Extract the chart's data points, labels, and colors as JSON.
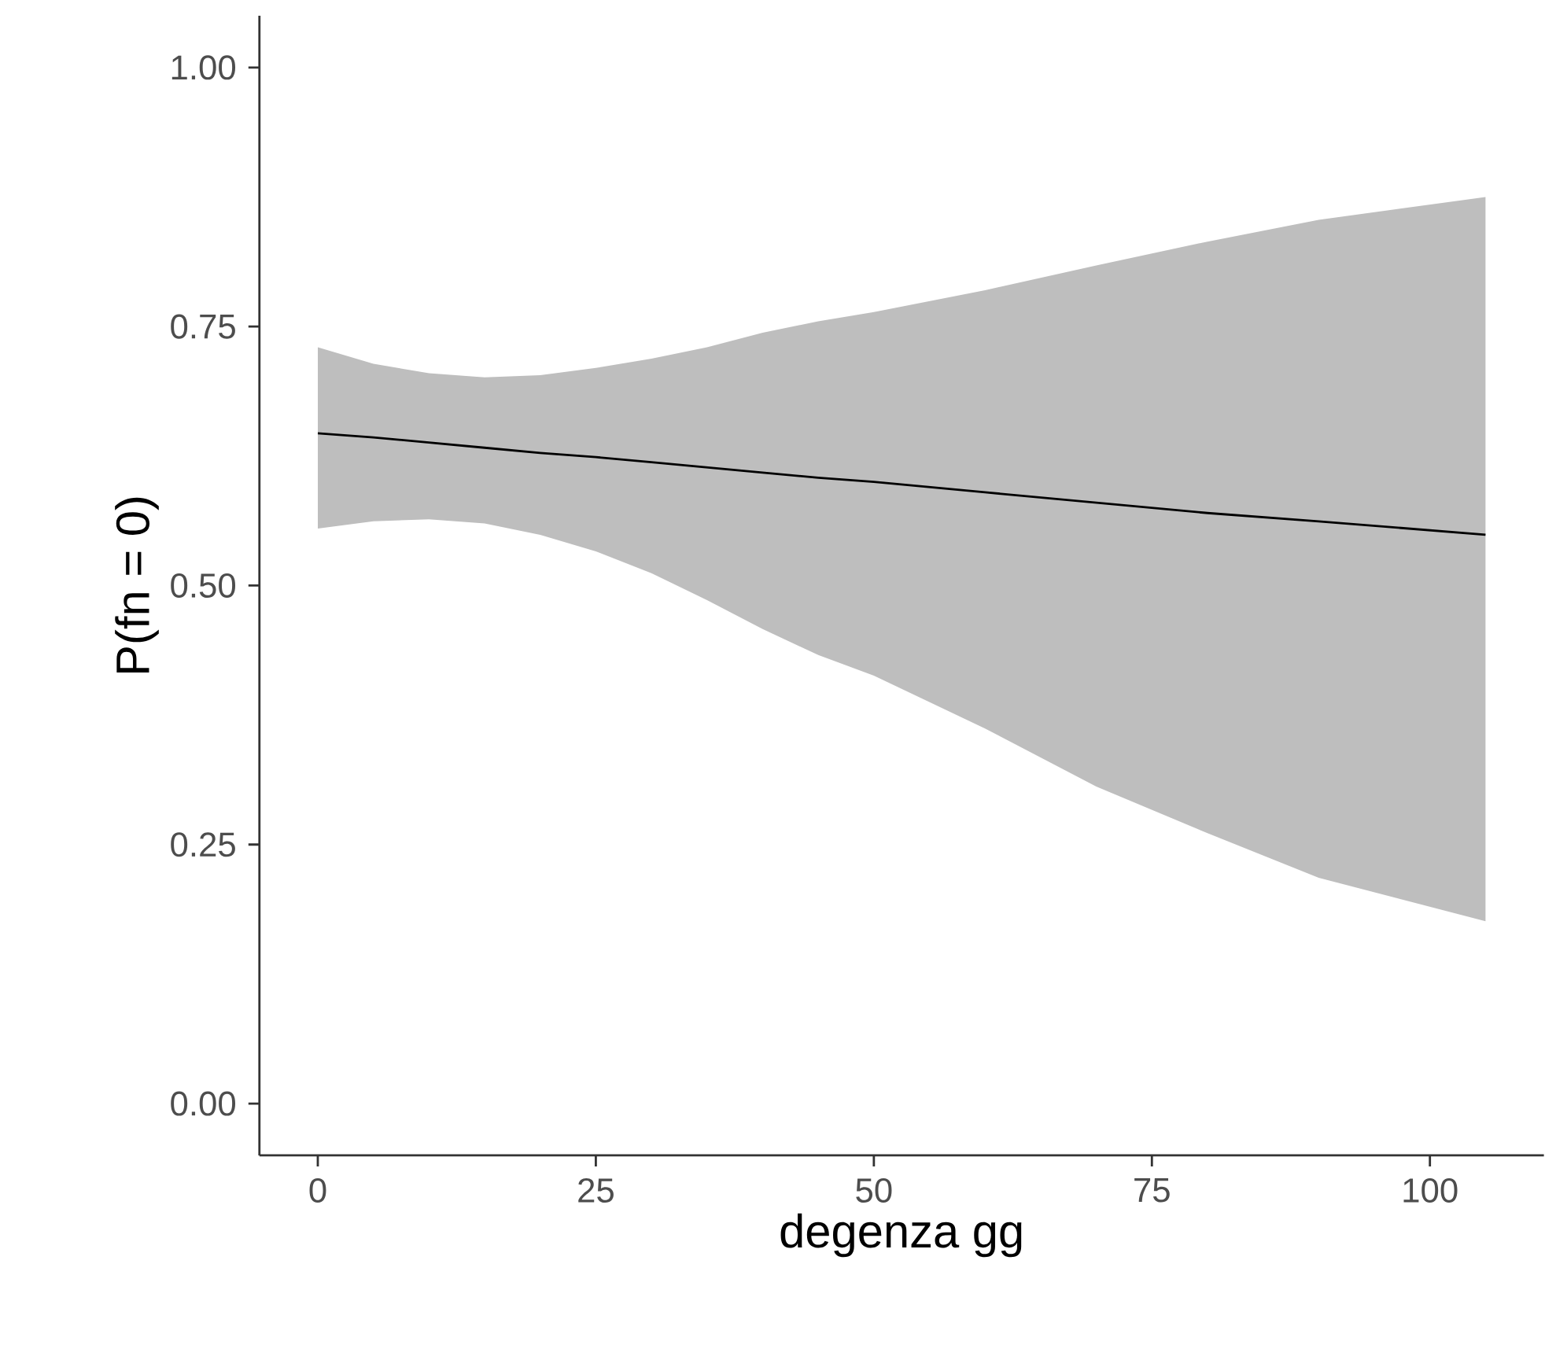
{
  "chart_data": {
    "type": "line",
    "xlabel": "degenza gg",
    "ylabel": "P(fn = 0)",
    "x": [
      0,
      5,
      10,
      15,
      20,
      25,
      30,
      35,
      40,
      45,
      50,
      60,
      70,
      80,
      90,
      105
    ],
    "series": [
      {
        "color": "#000000",
        "values": [
          0.647,
          0.643,
          0.638,
          0.633,
          0.628,
          0.624,
          0.619,
          0.614,
          0.609,
          0.604,
          0.6,
          0.59,
          0.58,
          0.57,
          0.562,
          0.549
        ],
        "lower": [
          0.555,
          0.562,
          0.564,
          0.56,
          0.549,
          0.533,
          0.512,
          0.486,
          0.458,
          0.433,
          0.413,
          0.362,
          0.306,
          0.261,
          0.218,
          0.176
        ],
        "upper": [
          0.73,
          0.714,
          0.705,
          0.701,
          0.703,
          0.71,
          0.719,
          0.73,
          0.744,
          0.755,
          0.764,
          0.785,
          0.809,
          0.832,
          0.853,
          0.875
        ]
      }
    ],
    "xlim": [
      -5.25,
      110.25
    ],
    "ylim": [
      -0.05,
      1.05
    ],
    "xticks": [
      0,
      25,
      50,
      75,
      100
    ],
    "yticks": [
      {
        "value": 0,
        "label": "0.00"
      },
      {
        "value": 0.25,
        "label": "0.25"
      },
      {
        "value": 0.5,
        "label": "0.50"
      },
      {
        "value": 0.75,
        "label": "0.75"
      },
      {
        "value": 1,
        "label": "1.00"
      }
    ]
  }
}
